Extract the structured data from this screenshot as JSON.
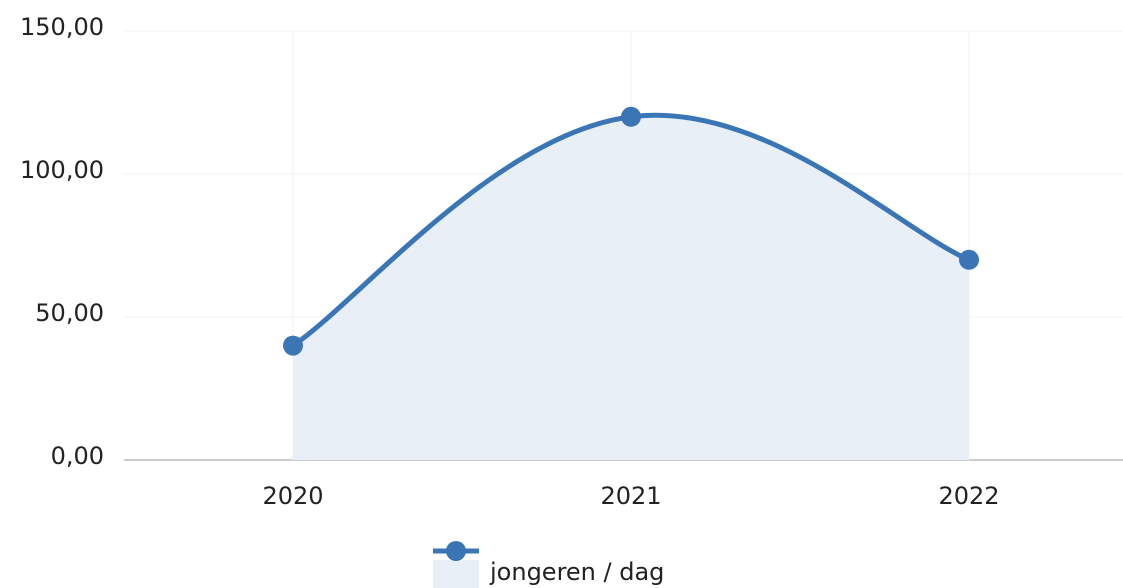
{
  "chart_data": {
    "type": "area",
    "categories": [
      "2020",
      "2021",
      "2022"
    ],
    "series": [
      {
        "name": "jongeren / dag",
        "color": "#3a75b5",
        "fill": "#e8eff7",
        "values": [
          40,
          120,
          70
        ]
      }
    ],
    "ylim": [
      0,
      150
    ],
    "yticks": [
      {
        "value": 0,
        "label": "0,00"
      },
      {
        "value": 50,
        "label": "50,00"
      },
      {
        "value": 100,
        "label": "100,00"
      },
      {
        "value": 150,
        "label": "150,00"
      }
    ],
    "grid": true,
    "legend": "bottom"
  }
}
